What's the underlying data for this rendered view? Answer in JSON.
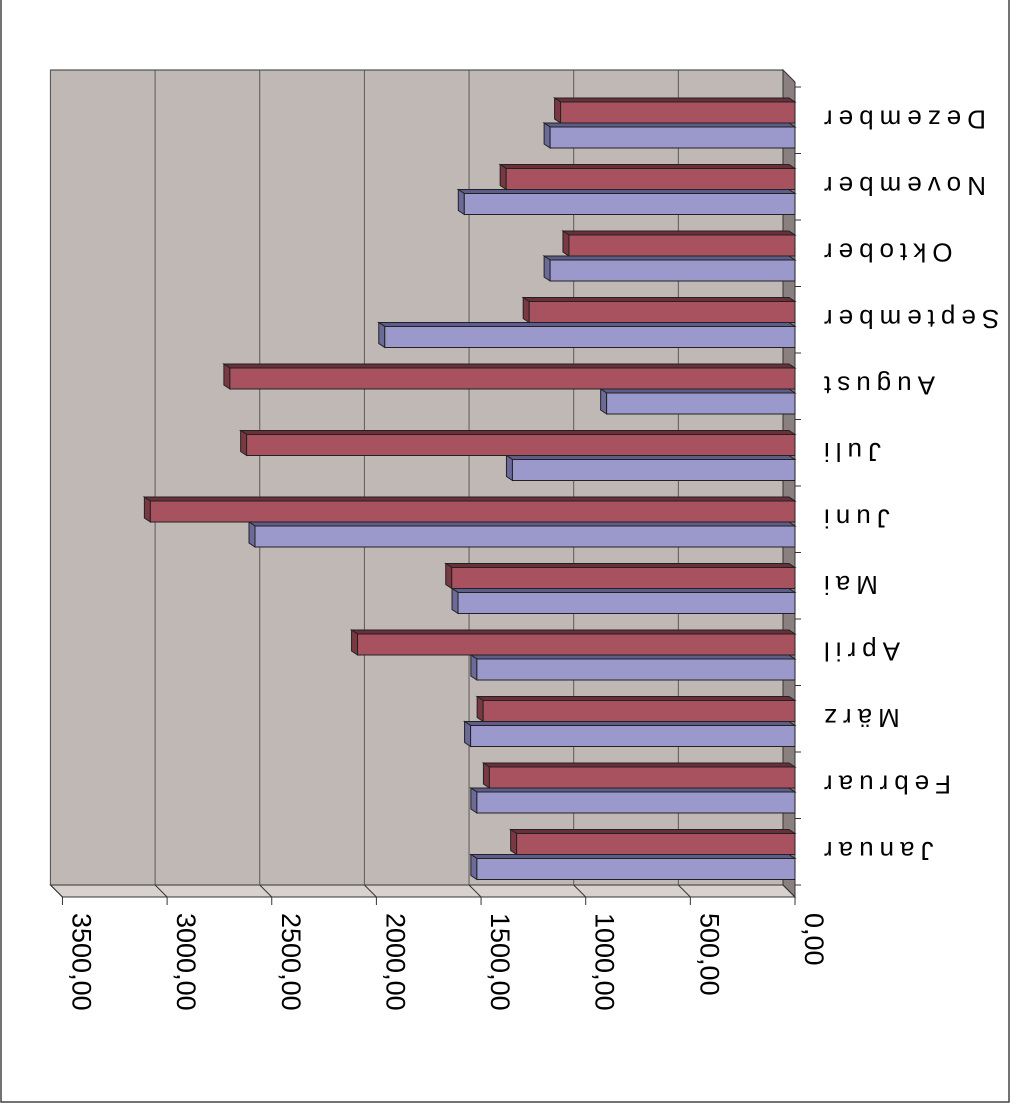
{
  "chart_data": {
    "type": "bar",
    "orientation": "horizontal",
    "rendering": "3d, image rotated 180 degrees",
    "categories": [
      "Januar",
      "Februar",
      "März",
      "April",
      "Mai",
      "Juni",
      "Juli",
      "August",
      "September",
      "Oktober",
      "November",
      "Dezember"
    ],
    "series": [
      {
        "color": "#9b98cc",
        "values": [
          1520,
          1520,
          1550,
          1520,
          1610,
          2580,
          1350,
          900,
          1960,
          1170,
          1580,
          1170
        ]
      },
      {
        "color": "#a8525f",
        "values": [
          1330,
          1460,
          1490,
          2090,
          1640,
          3080,
          2620,
          2700,
          1270,
          1080,
          1380,
          1120
        ]
      }
    ],
    "xlim": [
      0,
      3500
    ],
    "ticks": [
      "0,00",
      "500,00",
      "1000,00",
      "1500,00",
      "2000,00",
      "2500,00",
      "3000,00",
      "3500,00"
    ],
    "grid": true,
    "title": "",
    "xlabel": "",
    "ylabel": "",
    "colors": {
      "plot_wall": "#c0b8b4",
      "side_wall": "#8a8080",
      "gridline": "#5a5a5a"
    }
  }
}
